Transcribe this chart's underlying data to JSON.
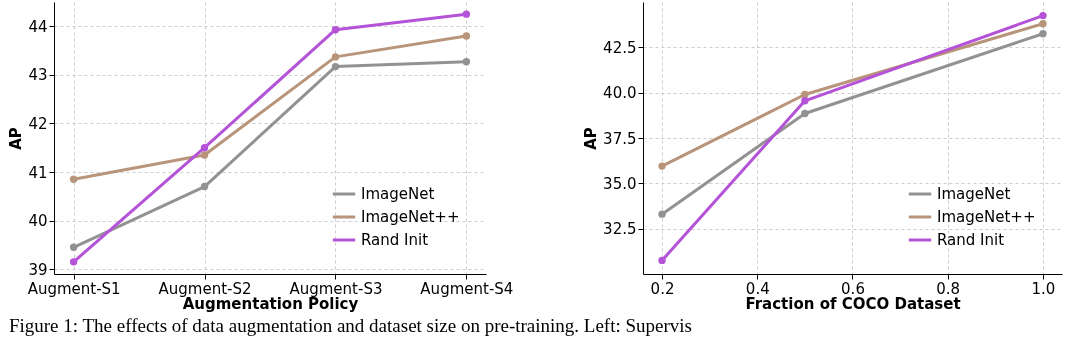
{
  "chart_data": [
    {
      "type": "line",
      "xlabel": "Augmentation Policy",
      "ylabel": "AP",
      "categories": [
        "Augment-S1",
        "Augment-S2",
        "Augment-S3",
        "Augment-S4"
      ],
      "ylim": [
        38.9,
        44.5
      ],
      "yticks": [
        39,
        40,
        41,
        42,
        43,
        44
      ],
      "grid": true,
      "legend": "bottom right",
      "marker": "circle",
      "series": [
        {
          "name": "ImageNet",
          "color": "#929292",
          "values": [
            39.45,
            40.7,
            43.17,
            43.27
          ]
        },
        {
          "name": "ImageNet++",
          "color": "#b8957a",
          "values": [
            40.85,
            41.35,
            43.37,
            43.8
          ]
        },
        {
          "name": "Rand Init",
          "color": "#b452d8",
          "values": [
            39.15,
            41.5,
            43.93,
            44.25
          ]
        }
      ]
    },
    {
      "type": "line",
      "xlabel": "Fraction of COCO Dataset",
      "ylabel": "AP",
      "x": [
        0.2,
        0.5,
        1.0
      ],
      "xlim": [
        0.16,
        1.04
      ],
      "xticks": [
        0.2,
        0.4,
        0.6,
        0.8,
        {
          "value": 1,
          "label": "1.0"
        }
      ],
      "ylim": [
        30,
        45
      ],
      "yticks": [
        32.5,
        {
          "value": 35,
          "label": "35.0"
        },
        37.5,
        {
          "value": 40,
          "label": "40.0"
        },
        42.5
      ],
      "grid": true,
      "legend": "bottom right",
      "marker": "circle",
      "annotations": [
        "Figure 1: The effects of data augmentation and dataset size on pre-training. Left: Supervis"
      ],
      "series": [
        {
          "name": "ImageNet",
          "color": "#929292",
          "values": [
            33.3,
            38.85,
            43.25
          ]
        },
        {
          "name": "ImageNet++",
          "color": "#b8957a",
          "values": [
            35.95,
            39.9,
            43.8
          ]
        },
        {
          "name": "Rand Init",
          "color": "#b452d8",
          "values": [
            30.75,
            39.55,
            44.25
          ]
        }
      ]
    }
  ]
}
